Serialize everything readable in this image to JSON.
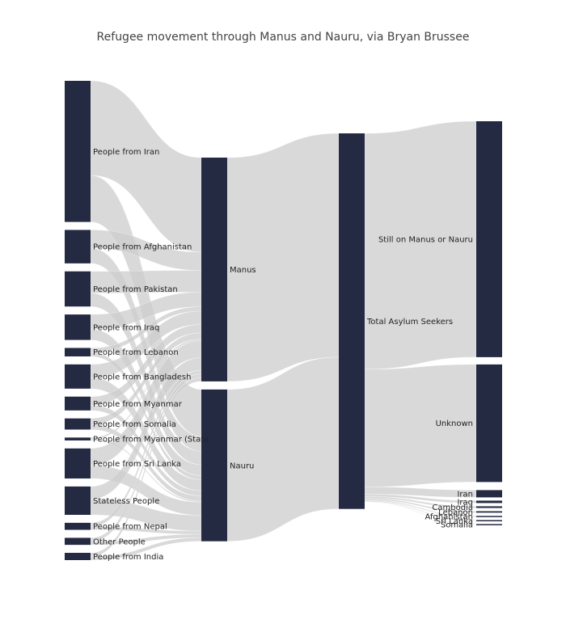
{
  "chart_data": {
    "type": "sankey",
    "title": "Refugee movement through Manus and Nauru, via Bryan Brussee",
    "node_color": "#252a43",
    "link_color": "#cccccc",
    "background": "#ffffff",
    "nodes": [
      {
        "name": "People from Iran",
        "column": 0
      },
      {
        "name": "People from Afghanistan",
        "column": 0
      },
      {
        "name": "People from Pakistan",
        "column": 0
      },
      {
        "name": "People from Iraq",
        "column": 0
      },
      {
        "name": "People from Lebanon",
        "column": 0
      },
      {
        "name": "People from Bangladesh",
        "column": 0
      },
      {
        "name": "People from Myanmar",
        "column": 0
      },
      {
        "name": "People from Somalia",
        "column": 0
      },
      {
        "name": "People from Myanmar (State",
        "column": 0
      },
      {
        "name": "People from Sri Lanka",
        "column": 0
      },
      {
        "name": "Stateless People",
        "column": 0
      },
      {
        "name": "People from Nepal",
        "column": 0
      },
      {
        "name": "Other People",
        "column": 0
      },
      {
        "name": "People from India",
        "column": 0
      },
      {
        "name": "Manus",
        "column": 1
      },
      {
        "name": "Nauru",
        "column": 1
      },
      {
        "name": "Total Asylum Seekers",
        "column": 2
      },
      {
        "name": "Still on Manus or Nauru",
        "column": 3
      },
      {
        "name": "Unknown",
        "column": 3
      },
      {
        "name": "Iran",
        "column": 3
      },
      {
        "name": "Iraq",
        "column": 3
      },
      {
        "name": "Cambodia",
        "column": 3
      },
      {
        "name": "Lebanon",
        "column": 3
      },
      {
        "name": "Afghanistan",
        "column": 3
      },
      {
        "name": "Sri Lanka",
        "column": 3
      },
      {
        "name": "Somalia",
        "column": 3
      }
    ],
    "links": [
      {
        "source": "People from Iran",
        "target": "Manus",
        "value": 390
      },
      {
        "source": "People from Iran",
        "target": "Nauru",
        "value": 192
      },
      {
        "source": "People from Afghanistan",
        "target": "Manus",
        "value": 75
      },
      {
        "source": "People from Afghanistan",
        "target": "Nauru",
        "value": 63
      },
      {
        "source": "People from Pakistan",
        "target": "Manus",
        "value": 90
      },
      {
        "source": "People from Pakistan",
        "target": "Nauru",
        "value": 55
      },
      {
        "source": "People from Iraq",
        "target": "Manus",
        "value": 60
      },
      {
        "source": "People from Iraq",
        "target": "Nauru",
        "value": 45
      },
      {
        "source": "People from Lebanon",
        "target": "Manus",
        "value": 18
      },
      {
        "source": "People from Lebanon",
        "target": "Nauru",
        "value": 17
      },
      {
        "source": "People from Bangladesh",
        "target": "Manus",
        "value": 55
      },
      {
        "source": "People from Bangladesh",
        "target": "Nauru",
        "value": 45
      },
      {
        "source": "People from Myanmar",
        "target": "Manus",
        "value": 35
      },
      {
        "source": "People from Myanmar",
        "target": "Nauru",
        "value": 22
      },
      {
        "source": "People from Somalia",
        "target": "Manus",
        "value": 25
      },
      {
        "source": "People from Somalia",
        "target": "Nauru",
        "value": 21
      },
      {
        "source": "People from Myanmar (State",
        "target": "Manus",
        "value": 7
      },
      {
        "source": "People from Myanmar (State",
        "target": "Nauru",
        "value": 5
      },
      {
        "source": "People from Sri Lanka",
        "target": "Manus",
        "value": 70
      },
      {
        "source": "People from Sri Lanka",
        "target": "Nauru",
        "value": 54
      },
      {
        "source": "Stateless People",
        "target": "Manus",
        "value": 52
      },
      {
        "source": "Stateless People",
        "target": "Nauru",
        "value": 65
      },
      {
        "source": "People from Nepal",
        "target": "Manus",
        "value": 16
      },
      {
        "source": "People from Nepal",
        "target": "Nauru",
        "value": 13
      },
      {
        "source": "Other People",
        "target": "Manus",
        "value": 15
      },
      {
        "source": "Other People",
        "target": "Nauru",
        "value": 14
      },
      {
        "source": "People from India",
        "target": "Manus",
        "value": 15
      },
      {
        "source": "People from India",
        "target": "Nauru",
        "value": 15
      },
      {
        "source": "Manus",
        "target": "Total Asylum Seekers",
        "value": 923
      },
      {
        "source": "Nauru",
        "target": "Total Asylum Seekers",
        "value": 626
      },
      {
        "source": "Total Asylum Seekers",
        "target": "Still on Manus or Nauru",
        "value": 973
      },
      {
        "source": "Total Asylum Seekers",
        "target": "Unknown",
        "value": 485
      },
      {
        "source": "Total Asylum Seekers",
        "target": "Iran",
        "value": 30
      },
      {
        "source": "Total Asylum Seekers",
        "target": "Iraq",
        "value": 10
      },
      {
        "source": "Total Asylum Seekers",
        "target": "Cambodia",
        "value": 7
      },
      {
        "source": "Total Asylum Seekers",
        "target": "Lebanon",
        "value": 6
      },
      {
        "source": "Total Asylum Seekers",
        "target": "Afghanistan",
        "value": 4
      },
      {
        "source": "Total Asylum Seekers",
        "target": "Sri Lanka",
        "value": 3
      },
      {
        "source": "Total Asylum Seekers",
        "target": "Somalia",
        "value": 2
      }
    ]
  }
}
